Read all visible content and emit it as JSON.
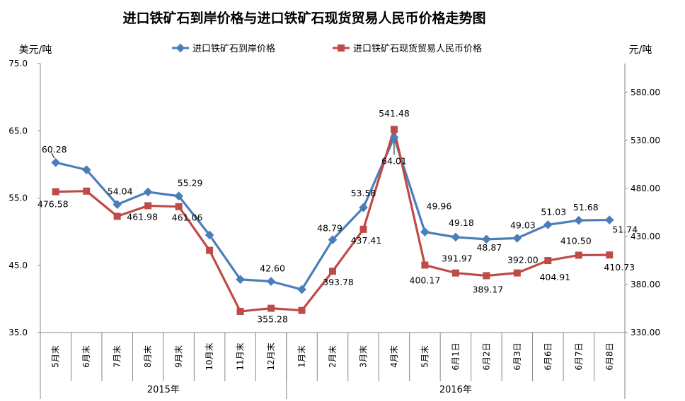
{
  "chart_data": {
    "type": "line",
    "title": "进口铁矿石到岸价格与进口铁矿石现货贸易人民币价格走势图",
    "y_left_label": "美元/吨",
    "y_right_label": "元/吨",
    "y_left_range": [
      35.0,
      75.0
    ],
    "y_left_ticks": [
      "35.0",
      "45.0",
      "55.0",
      "65.0",
      "75.0"
    ],
    "y_right_range": [
      330.0,
      610.0
    ],
    "y_right_ticks": [
      "330.00",
      "380.00",
      "430.00",
      "480.00",
      "530.00",
      "580.00"
    ],
    "categories": [
      "5月末",
      "6月末",
      "7月末",
      "8月末",
      "9月末",
      "10月末",
      "11月末",
      "12月末",
      "1月末",
      "2月末",
      "3月末",
      "4月末",
      "5月末",
      "6月1日",
      "6月2日",
      "6月3日",
      "6月6日",
      "6月7日",
      "6月8日"
    ],
    "year_groups": [
      {
        "label": "2015年",
        "count": 8
      },
      {
        "label": "2016年",
        "count": 11
      }
    ],
    "legend_position": "top-center",
    "grid": false,
    "series": [
      {
        "name": "进口铁矿石到岸价格",
        "axis": "left",
        "color": "#4a7ebb",
        "marker": "diamond",
        "values": [
          60.28,
          59.2,
          54.04,
          55.9,
          55.29,
          49.5,
          42.9,
          42.6,
          41.4,
          48.79,
          53.58,
          64.01,
          49.96,
          49.18,
          48.87,
          49.03,
          51.03,
          51.68,
          51.74
        ],
        "labels": [
          "60.28",
          "",
          "54.04",
          "",
          "55.29",
          "",
          "",
          "42.60",
          "",
          "48.79",
          "53.58",
          "64.01",
          "49.96",
          "49.18",
          "48.87",
          "49.03",
          "51.03",
          "51.68",
          "51.74"
        ]
      },
      {
        "name": "进口铁矿石现货贸易人民币价格",
        "axis": "right",
        "color": "#be4b48",
        "marker": "square",
        "values": [
          476.58,
          477.2,
          451.0,
          461.98,
          461.06,
          415.5,
          352.0,
          355.28,
          353.0,
          393.78,
          437.41,
          541.48,
          400.17,
          391.97,
          389.17,
          392.0,
          404.91,
          410.5,
          410.73
        ],
        "labels": [
          "476.58",
          "",
          "",
          "461.98",
          "461.06",
          "",
          "",
          "355.28",
          "",
          "393.78",
          "437.41",
          "541.48",
          "400.17",
          "391.97",
          "389.17",
          "392.00",
          "404.91",
          "410.50",
          "410.73"
        ]
      }
    ]
  }
}
